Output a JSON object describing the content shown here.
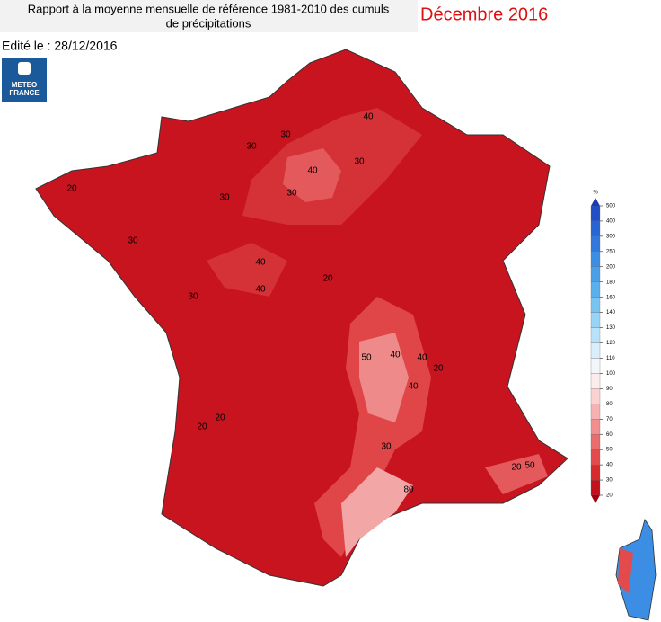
{
  "header": {
    "title_line1": "Rapport à la moyenne mensuelle de référence 1981-2010 des cumuls",
    "title_line2": "de précipitations",
    "period": "Décembre 2016",
    "edition": "Edité le : 28/12/2016",
    "logo_line1": "METEO",
    "logo_line2": "FRANCE"
  },
  "legend": {
    "unit": "%",
    "ticks": [
      20,
      30,
      40,
      50,
      60,
      70,
      80,
      90,
      100,
      110,
      120,
      130,
      140,
      160,
      180,
      200,
      250,
      300,
      400,
      500
    ],
    "colors": [
      "#c4101c",
      "#d62a2e",
      "#e24a4c",
      "#ea6c6c",
      "#f28e8e",
      "#f6b2b2",
      "#fad2d2",
      "#fcecec",
      "#f2f6fb",
      "#d8eefa",
      "#b8e2f8",
      "#98d4f5",
      "#78c4f0",
      "#58b0ec",
      "#4aa0e8",
      "#3c8ee4",
      "#3078dc",
      "#2864d4",
      "#2050c8"
    ],
    "below_color": "#a00010",
    "above_color": "#1a3cb0"
  },
  "map": {
    "contour_labels": [
      30,
      30,
      30,
      40,
      40,
      30,
      30,
      20,
      30,
      40,
      20,
      30,
      40,
      40,
      20,
      20,
      20,
      20,
      50,
      80,
      40,
      50,
      40,
      30
    ]
  }
}
